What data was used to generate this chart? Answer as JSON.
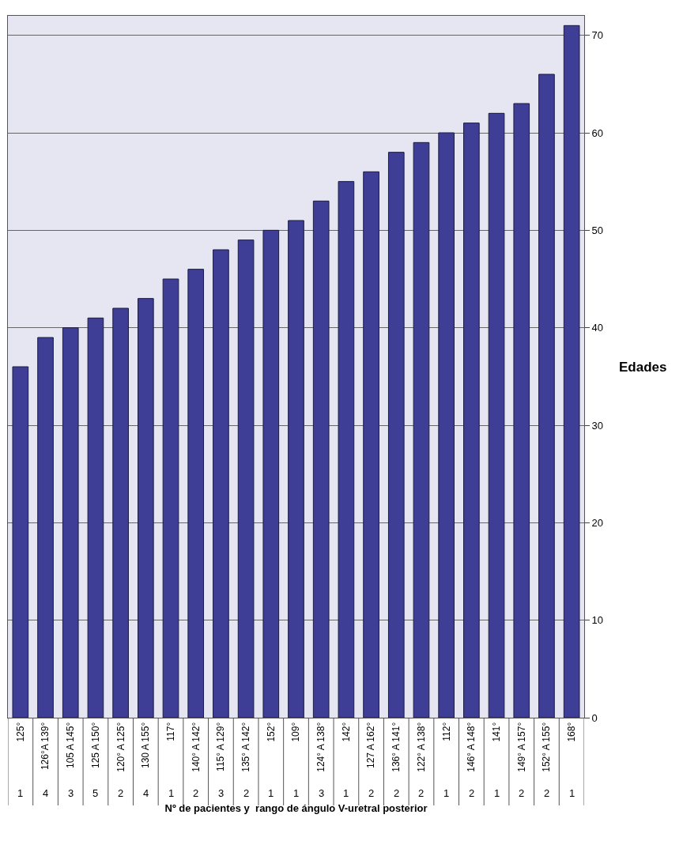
{
  "chart_data": {
    "type": "bar",
    "categories": [
      "125°",
      "126°A 139°",
      "105 A 145°",
      "125 A 150°",
      "120° A 125°",
      "130 A 155°",
      "117°",
      "140° A 142°",
      "115° A 129°",
      "135° A 142°",
      "152°",
      "109°",
      "124° A 138°",
      "142°",
      "127 A 162°",
      "136° A 141°",
      "122° A 138°",
      "112°",
      "146° A 148°",
      "141°",
      "149° A 157°",
      "152° A 155°",
      "168°"
    ],
    "values": [
      36,
      39,
      40,
      41,
      42,
      43,
      45,
      46,
      48,
      49,
      50,
      51,
      53,
      55,
      56,
      58,
      59,
      60,
      61,
      62,
      63,
      66,
      71
    ],
    "color": "#3e3e96",
    "ylim": [
      0,
      72
    ],
    "yticks": [
      0,
      10,
      20,
      30,
      40,
      50,
      60,
      70
    ],
    "grid": "y",
    "ylabel": "Edades",
    "xlabel": "Nº de pacientes y  rango de ángulo V-uretral posterior",
    "annotations": [
      "1",
      "4",
      "3",
      "5",
      "2",
      "4",
      "1",
      "2",
      "3",
      "2",
      "1",
      "1",
      "3",
      "1",
      "2",
      "2",
      "2",
      "1",
      "2",
      "1",
      "2",
      "2",
      "1"
    ]
  }
}
